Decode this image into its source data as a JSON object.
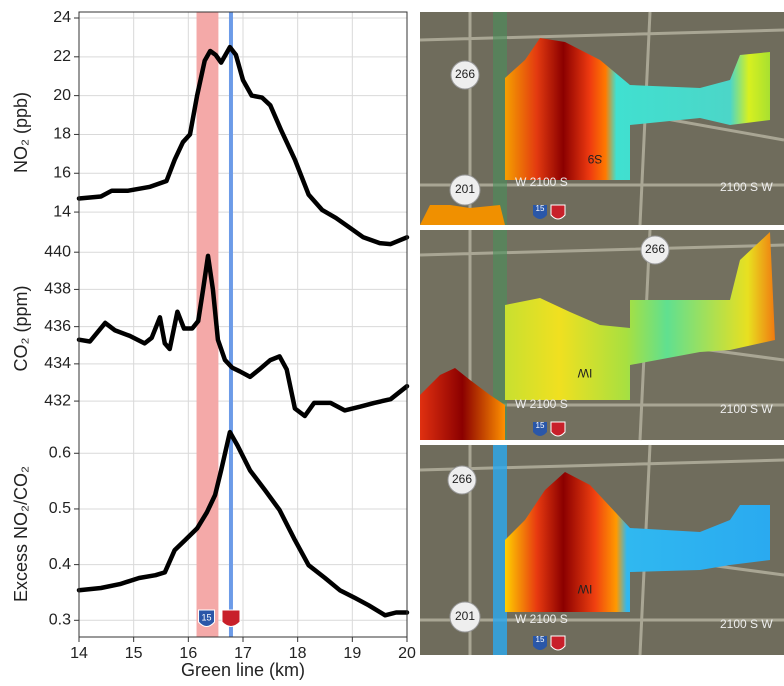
{
  "chart_data": {
    "type": "line",
    "x_label": "Green line (km)",
    "xlim": [
      14,
      20
    ],
    "xticks": [
      14,
      15,
      16,
      17,
      18,
      19,
      20
    ],
    "grid": true,
    "band": [
      16.15,
      16.55
    ],
    "band_color": "#f4a9a8",
    "marker_x": 16.78,
    "marker_color": "#6c9be8",
    "panels": [
      {
        "y_label": "NO₂ (ppb)",
        "ylim": [
          12.2,
          24
        ],
        "yticks": [
          14,
          16,
          18,
          20,
          22,
          24
        ],
        "color": "#000000",
        "x": [
          14.0,
          14.4,
          14.6,
          14.9,
          15.3,
          15.6,
          15.75,
          15.9,
          16.03,
          16.16,
          16.3,
          16.4,
          16.5,
          16.6,
          16.76,
          16.87,
          17.0,
          17.16,
          17.35,
          17.5,
          17.7,
          17.95,
          18.2,
          18.45,
          18.7,
          18.95,
          19.2,
          19.5,
          19.7,
          20.0
        ],
        "values": [
          14.7,
          14.8,
          15.1,
          15.1,
          15.3,
          15.6,
          16.7,
          17.6,
          18.0,
          20.0,
          21.8,
          22.3,
          22.1,
          21.7,
          22.5,
          22.1,
          20.8,
          20.0,
          19.9,
          19.5,
          18.2,
          16.7,
          14.9,
          14.1,
          13.7,
          13.2,
          12.7,
          12.4,
          12.35,
          12.7
        ]
      },
      {
        "y_label": "CO₂ (ppm)",
        "ylim": [
          430.5,
          441.3
        ],
        "yticks": [
          432,
          434,
          436,
          438,
          440
        ],
        "color": "#000000",
        "x": [
          14.0,
          14.2,
          14.48,
          14.66,
          14.93,
          15.2,
          15.33,
          15.48,
          15.57,
          15.66,
          15.8,
          15.92,
          16.07,
          16.18,
          16.27,
          16.36,
          16.45,
          16.54,
          16.67,
          16.8,
          16.94,
          17.13,
          17.3,
          17.5,
          17.67,
          17.8,
          17.95,
          18.13,
          18.3,
          18.6,
          18.86,
          19.14,
          19.4,
          19.7,
          20.0
        ],
        "values": [
          435.3,
          435.2,
          436.2,
          435.8,
          435.5,
          435.1,
          435.4,
          436.5,
          435.1,
          434.8,
          436.8,
          435.9,
          435.9,
          436.3,
          438.0,
          439.8,
          438.0,
          435.3,
          434.2,
          433.8,
          433.6,
          433.3,
          433.7,
          434.2,
          434.4,
          433.7,
          431.6,
          431.2,
          431.9,
          431.9,
          431.5,
          431.7,
          431.9,
          432.1,
          432.8
        ]
      },
      {
        "y_label": "Excess NO₂/CO₂",
        "ylim": [
          0.27,
          0.64
        ],
        "yticks": [
          0.3,
          0.4,
          0.5,
          0.6
        ],
        "color": "#000000",
        "x": [
          14.0,
          14.4,
          14.75,
          15.1,
          15.4,
          15.57,
          15.75,
          15.94,
          16.16,
          16.34,
          16.49,
          16.6,
          16.76,
          16.9,
          17.13,
          17.4,
          17.67,
          17.95,
          18.2,
          18.5,
          18.77,
          19.05,
          19.3,
          19.6,
          19.8,
          20.0
        ],
        "values": [
          0.354,
          0.358,
          0.365,
          0.376,
          0.381,
          0.386,
          0.426,
          0.444,
          0.465,
          0.494,
          0.525,
          0.569,
          0.638,
          0.614,
          0.569,
          0.534,
          0.498,
          0.444,
          0.399,
          0.376,
          0.354,
          0.34,
          0.327,
          0.309,
          0.314,
          0.314
        ]
      }
    ]
  },
  "shield": "15",
  "maps": [
    {
      "labels": [
        "266",
        "201",
        "W 2100 S",
        "2100 S W",
        "S9"
      ]
    },
    {
      "labels": [
        "266",
        "W 2100 S",
        "2100 S W",
        "IW"
      ]
    },
    {
      "labels": [
        "266",
        "201",
        "W 2100 S",
        "2100 S W",
        "IW"
      ]
    }
  ]
}
